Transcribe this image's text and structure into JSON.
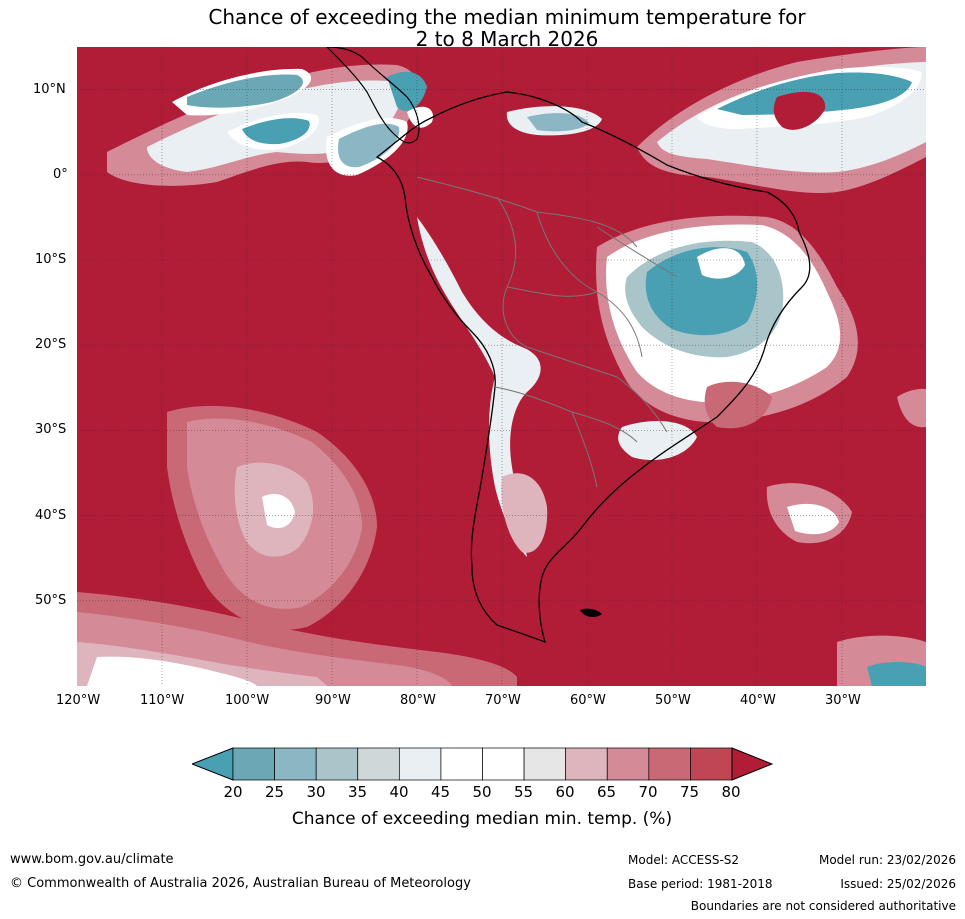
{
  "title_line1": "Chance of exceeding the median minimum temperature for",
  "title_line2": "2 to 8 March 2026",
  "map": {
    "projection": "equirectangular",
    "lon_range": [
      -120,
      -20
    ],
    "lat_range": [
      -60,
      15
    ],
    "background_color": "#b11c37",
    "lat_ticks": [
      "10°N",
      "0°",
      "10°S",
      "20°S",
      "30°S",
      "40°S",
      "50°S"
    ],
    "lon_ticks": [
      "120°W",
      "110°W",
      "100°W",
      "90°W",
      "80°W",
      "70°W",
      "60°W",
      "50°W",
      "40°W",
      "30°W"
    ],
    "gridlines": true
  },
  "colorbar": {
    "title": "Chance of exceeding median min. temp. (%)",
    "tick_labels": [
      "20",
      "25",
      "30",
      "35",
      "40",
      "45",
      "50",
      "55",
      "60",
      "65",
      "70",
      "75",
      "80"
    ],
    "low_extend_color": "#49a0b2",
    "high_extend_color": "#b11c37",
    "colors": [
      "#6aa8b6",
      "#8bb7c5",
      "#a9c5ca",
      "#d0d7d9",
      "#e9eff2",
      "#ffffff",
      "#ffffff",
      "#e6e6e6",
      "#dfb5bd",
      "#d58a97",
      "#c96976",
      "#c04656"
    ]
  },
  "footer": {
    "website": "www.bom.gov.au/climate",
    "copyright": "© Commonwealth of Australia 2026, Australian Bureau of Meteorology",
    "model": "Model: ACCESS-S2",
    "base_period": "Base period: 1981-2018",
    "model_run": "Model run: 23/02/2026",
    "issued": "Issued: 25/02/2026",
    "disclaimer": "Boundaries are not considered authoritative"
  }
}
